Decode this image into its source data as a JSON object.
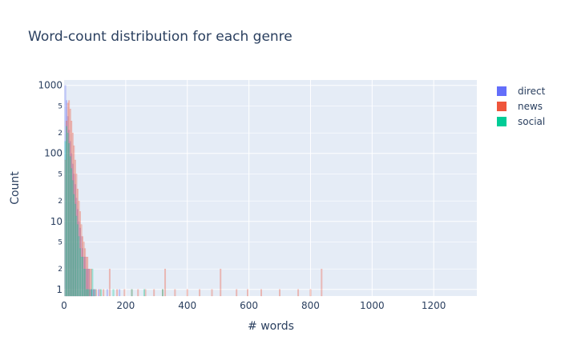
{
  "chart_data": {
    "type": "bar",
    "title": "Word-count distribution for each genre",
    "xlabel": "# words",
    "ylabel": "Count",
    "xlim": [
      0,
      1340
    ],
    "ylim": [
      0.8,
      1200
    ],
    "y_scale": "log",
    "barmode": "overlay",
    "grid": true,
    "legend_position": "top-right",
    "x_ticks": [
      "0",
      "200",
      "400",
      "600",
      "800",
      "1000",
      "1200"
    ],
    "x_tick_values": [
      0,
      200,
      400,
      600,
      800,
      1000,
      1200
    ],
    "y_major_ticks": [
      "1",
      "10",
      "100",
      "1000"
    ],
    "y_major_values": [
      1,
      10,
      100,
      1000
    ],
    "y_minor_ticks": [
      "2",
      "5",
      "2",
      "5",
      "2",
      "5"
    ],
    "y_minor_values": [
      2,
      5,
      20,
      50,
      200,
      500
    ],
    "bin_width": 4,
    "series": [
      {
        "name": "direct",
        "color": "#636efa",
        "x": [
          4,
          8,
          12,
          16,
          20,
          24,
          28,
          32,
          36,
          40,
          44,
          48,
          52,
          56,
          60,
          64,
          68,
          72,
          76,
          80,
          84,
          88,
          92,
          96,
          100,
          112,
          140,
          180
        ],
        "values": [
          1000,
          600,
          350,
          220,
          150,
          100,
          70,
          50,
          35,
          22,
          15,
          10,
          8,
          6,
          4,
          3,
          3,
          2,
          2,
          2,
          1,
          1,
          1,
          1,
          1,
          1,
          1,
          1
        ]
      },
      {
        "name": "news",
        "color": "#ef553b",
        "x": [
          4,
          8,
          12,
          16,
          20,
          24,
          28,
          32,
          36,
          40,
          44,
          48,
          52,
          56,
          60,
          64,
          68,
          72,
          76,
          80,
          84,
          88,
          96,
          104,
          116,
          128,
          148,
          172,
          196,
          220,
          240,
          264,
          292,
          320,
          328,
          360,
          400,
          440,
          480,
          508,
          560,
          596,
          640,
          700,
          760,
          800,
          836
        ],
        "values": [
          80,
          300,
          550,
          600,
          450,
          300,
          200,
          130,
          80,
          50,
          30,
          20,
          14,
          9,
          6,
          5,
          4,
          3,
          3,
          2,
          2,
          2,
          1,
          1,
          1,
          1,
          2,
          1,
          1,
          1,
          1,
          1,
          1,
          1,
          2,
          1,
          1,
          1,
          1,
          2,
          1,
          1,
          1,
          1,
          1,
          1,
          2
        ]
      },
      {
        "name": "social",
        "color": "#00cc96",
        "x": [
          4,
          8,
          12,
          16,
          20,
          24,
          28,
          32,
          36,
          40,
          44,
          48,
          52,
          56,
          60,
          64,
          68,
          72,
          76,
          80,
          88,
          92,
          100,
          120,
          160,
          220,
          260,
          320
        ],
        "values": [
          150,
          250,
          200,
          140,
          90,
          60,
          40,
          25,
          18,
          12,
          9,
          6,
          4,
          3,
          3,
          2,
          2,
          1,
          1,
          1,
          1,
          2,
          1,
          1,
          1,
          1,
          1,
          1
        ]
      }
    ]
  }
}
